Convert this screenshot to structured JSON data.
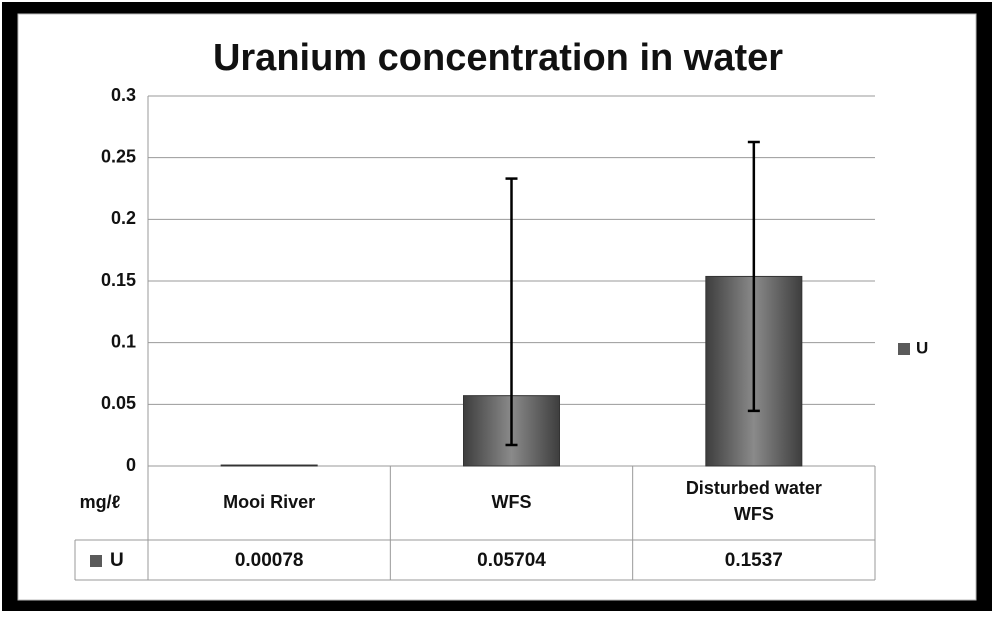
{
  "chart_data": {
    "type": "bar",
    "title": "Uranium concentration in water",
    "y_label": "mg/ℓ",
    "categories": [
      "Mooi River",
      "WFS",
      "Disturbed  water WFS"
    ],
    "series": [
      {
        "name": "U",
        "color": "#5a5a5a",
        "values": [
          0.00078,
          0.05704,
          0.1537
        ],
        "error_minus": [
          null,
          0.04,
          0.109
        ],
        "error_plus": [
          null,
          0.176,
          0.109
        ]
      }
    ],
    "ylim": [
      0,
      0.3
    ],
    "yticks": [
      0,
      0.05,
      0.1,
      0.15,
      0.2,
      0.25,
      0.3
    ],
    "grid": true,
    "legend": "right",
    "data_table": true
  }
}
